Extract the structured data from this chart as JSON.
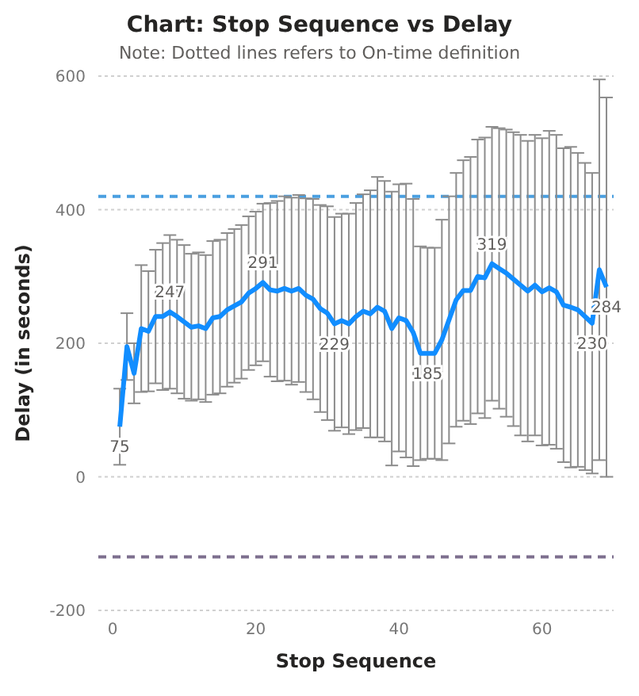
{
  "chart_data": {
    "type": "line",
    "title": "Chart: Stop Sequence vs Delay",
    "subtitle": "Note: Dotted lines refers to On-time definition",
    "xlabel": "Stop Sequence",
    "ylabel": "Delay (in seconds)",
    "x": [
      1,
      2,
      3,
      4,
      5,
      6,
      7,
      8,
      9,
      10,
      11,
      12,
      13,
      14,
      15,
      16,
      17,
      18,
      19,
      20,
      21,
      22,
      23,
      24,
      25,
      26,
      27,
      28,
      29,
      30,
      31,
      32,
      33,
      34,
      35,
      36,
      37,
      38,
      39,
      40,
      41,
      42,
      43,
      44,
      45,
      46,
      47,
      48,
      49,
      50,
      51,
      52,
      53,
      54,
      55,
      56,
      57,
      58,
      59,
      60,
      61,
      62,
      63,
      64,
      65,
      66,
      67,
      68,
      69
    ],
    "series": [
      {
        "color": "#118dff",
        "values": [
          75,
          195,
          155,
          222,
          218,
          240,
          240,
          247,
          240,
          232,
          224,
          226,
          222,
          238,
          240,
          250,
          256,
          262,
          275,
          282,
          291,
          280,
          278,
          282,
          278,
          282,
          272,
          266,
          252,
          245,
          229,
          234,
          229,
          240,
          248,
          244,
          254,
          248,
          222,
          238,
          234,
          216,
          185,
          185,
          185,
          205,
          235,
          265,
          279,
          279,
          300,
          298,
          319,
          312,
          305,
          296,
          287,
          278,
          287,
          277,
          283,
          277,
          257,
          254,
          250,
          240,
          230,
          310,
          284
        ],
        "errors": [
          57,
          50,
          45,
          95,
          90,
          100,
          110,
          115,
          115,
          115,
          110,
          110,
          110,
          115,
          115,
          115,
          115,
          115,
          115,
          115,
          118,
          130,
          135,
          138,
          140,
          140,
          145,
          150,
          155,
          160,
          160,
          160,
          165,
          170,
          175,
          185,
          195,
          195,
          205,
          200,
          205,
          200,
          160,
          158,
          158,
          180,
          185,
          190,
          195,
          200,
          205,
          210,
          205,
          210,
          215,
          220,
          225,
          225,
          225,
          230,
          235,
          235,
          235,
          240,
          235,
          230,
          225,
          285,
          284
        ],
        "value_labels": [
          "75",
          null,
          null,
          null,
          null,
          null,
          null,
          "247",
          null,
          null,
          null,
          null,
          null,
          null,
          null,
          null,
          null,
          null,
          null,
          null,
          "291",
          null,
          null,
          null,
          null,
          null,
          null,
          null,
          null,
          null,
          "229",
          null,
          null,
          null,
          null,
          null,
          null,
          null,
          null,
          null,
          null,
          null,
          null,
          "185",
          null,
          null,
          null,
          null,
          null,
          null,
          null,
          null,
          "319",
          null,
          null,
          null,
          null,
          null,
          null,
          null,
          null,
          null,
          null,
          null,
          null,
          null,
          "230",
          null,
          "284"
        ]
      }
    ],
    "xlim": [
      -2,
      70
    ],
    "xticks": [
      0,
      20,
      40,
      60
    ],
    "ylim": [
      -200,
      600
    ],
    "yticks": [
      -200,
      0,
      200,
      400,
      600
    ],
    "grid": "y",
    "marker": "none",
    "line_style": "solid",
    "ref_lines": [
      {
        "axis": "y",
        "value": 420,
        "color": "#4a9fe0",
        "line_style": "dashed"
      },
      {
        "axis": "y",
        "value": -120,
        "color": "#7d6f8e",
        "line_style": "dashed"
      }
    ]
  }
}
